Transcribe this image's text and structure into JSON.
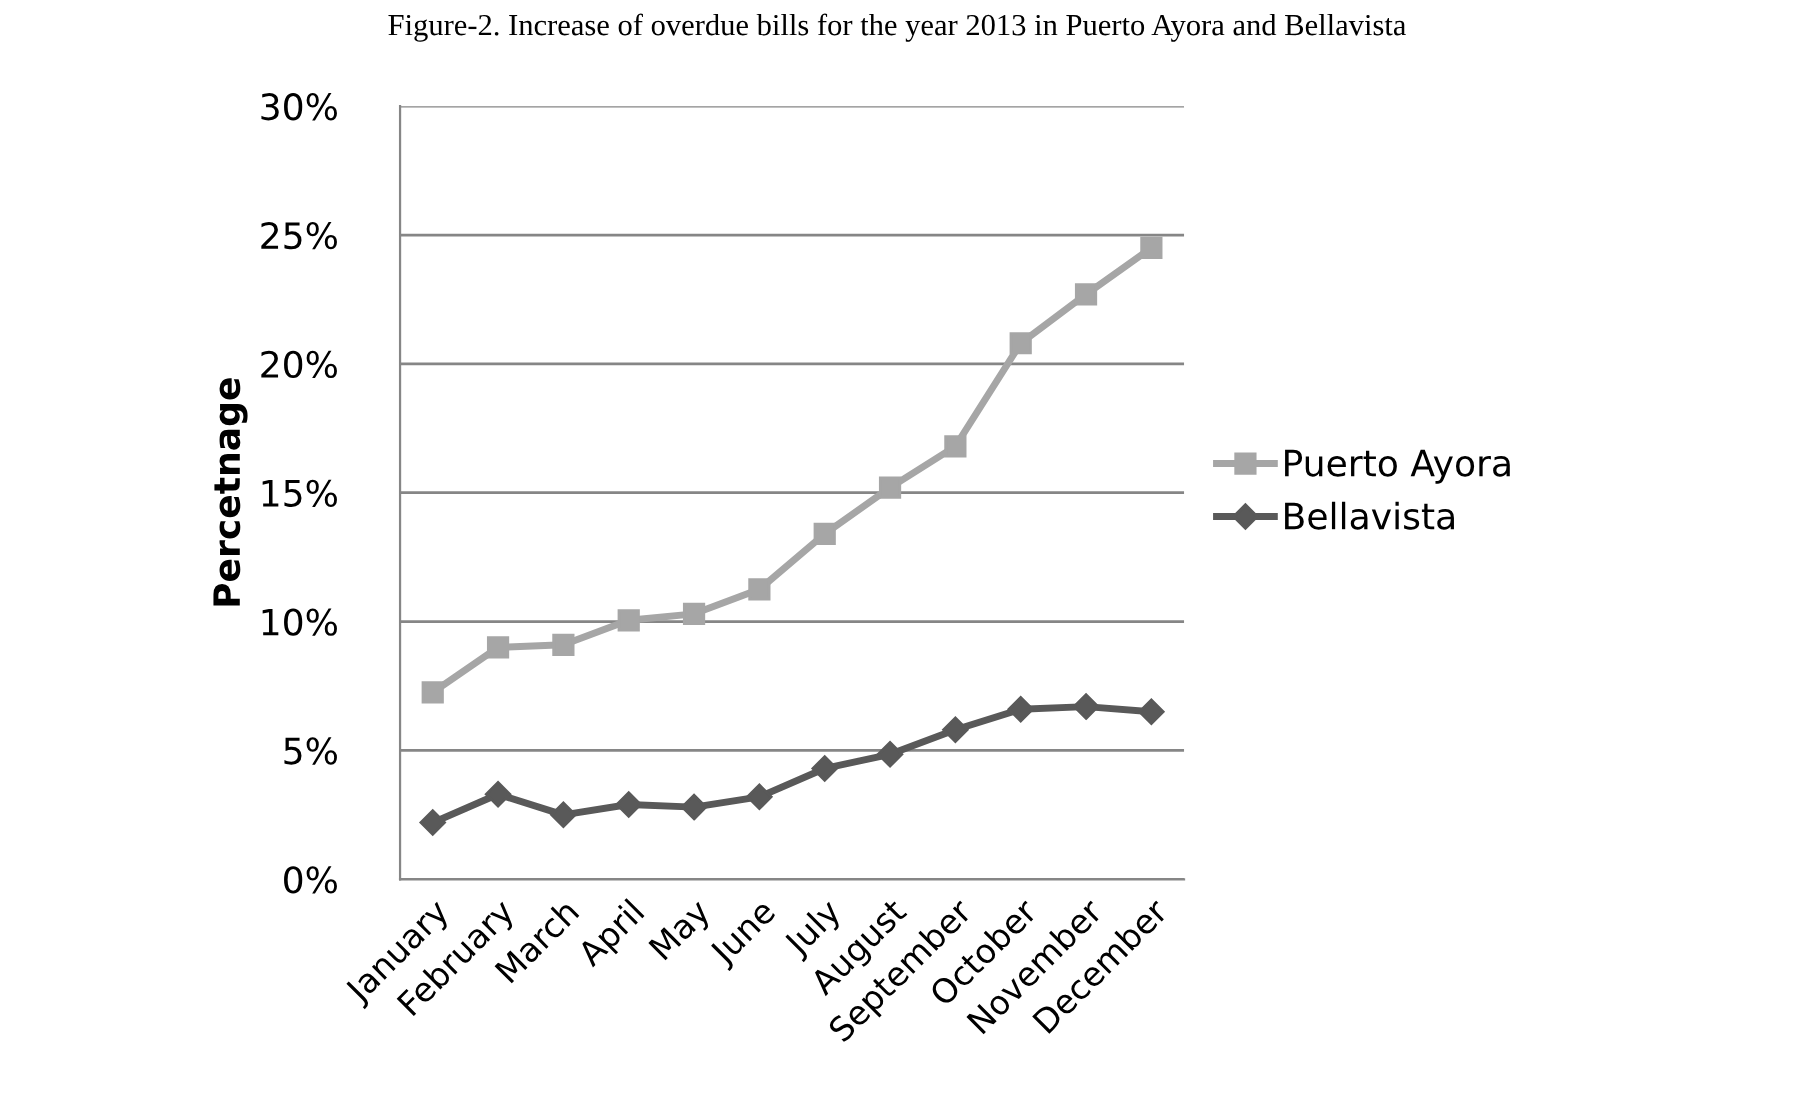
{
  "chart_data": {
    "type": "line",
    "title": "Figure-2. Increase of overdue bills for the year 2013 in Puerto Ayora and Bellavista",
    "ylabel": "Percetnage",
    "categories": [
      "January",
      "February",
      "March",
      "April",
      "May",
      "June",
      "July",
      "August",
      "September",
      "October",
      "November",
      "December"
    ],
    "series": [
      {
        "name": "Puerto Ayora",
        "color": "#a6a6a6",
        "marker": "square",
        "values": [
          7.25,
          9.0,
          9.1,
          10.05,
          10.3,
          11.25,
          13.4,
          15.2,
          16.8,
          20.8,
          22.7,
          24.5
        ]
      },
      {
        "name": "Bellavista",
        "color": "#595959",
        "marker": "diamond",
        "values": [
          2.2,
          3.3,
          2.5,
          2.9,
          2.8,
          3.2,
          4.3,
          4.85,
          5.8,
          6.6,
          6.7,
          6.5
        ]
      }
    ],
    "ylim": [
      0,
      30
    ],
    "yticks": [
      {
        "value": 0,
        "label": "0%"
      },
      {
        "value": 5,
        "label": "5%"
      },
      {
        "value": 10,
        "label": "10%"
      },
      {
        "value": 15,
        "label": "15%"
      },
      {
        "value": 20,
        "label": "20%"
      },
      {
        "value": 25,
        "label": "25%"
      },
      {
        "value": 30,
        "label": "30%"
      }
    ],
    "grid": "y",
    "legend": "right",
    "line_style": "solid"
  }
}
